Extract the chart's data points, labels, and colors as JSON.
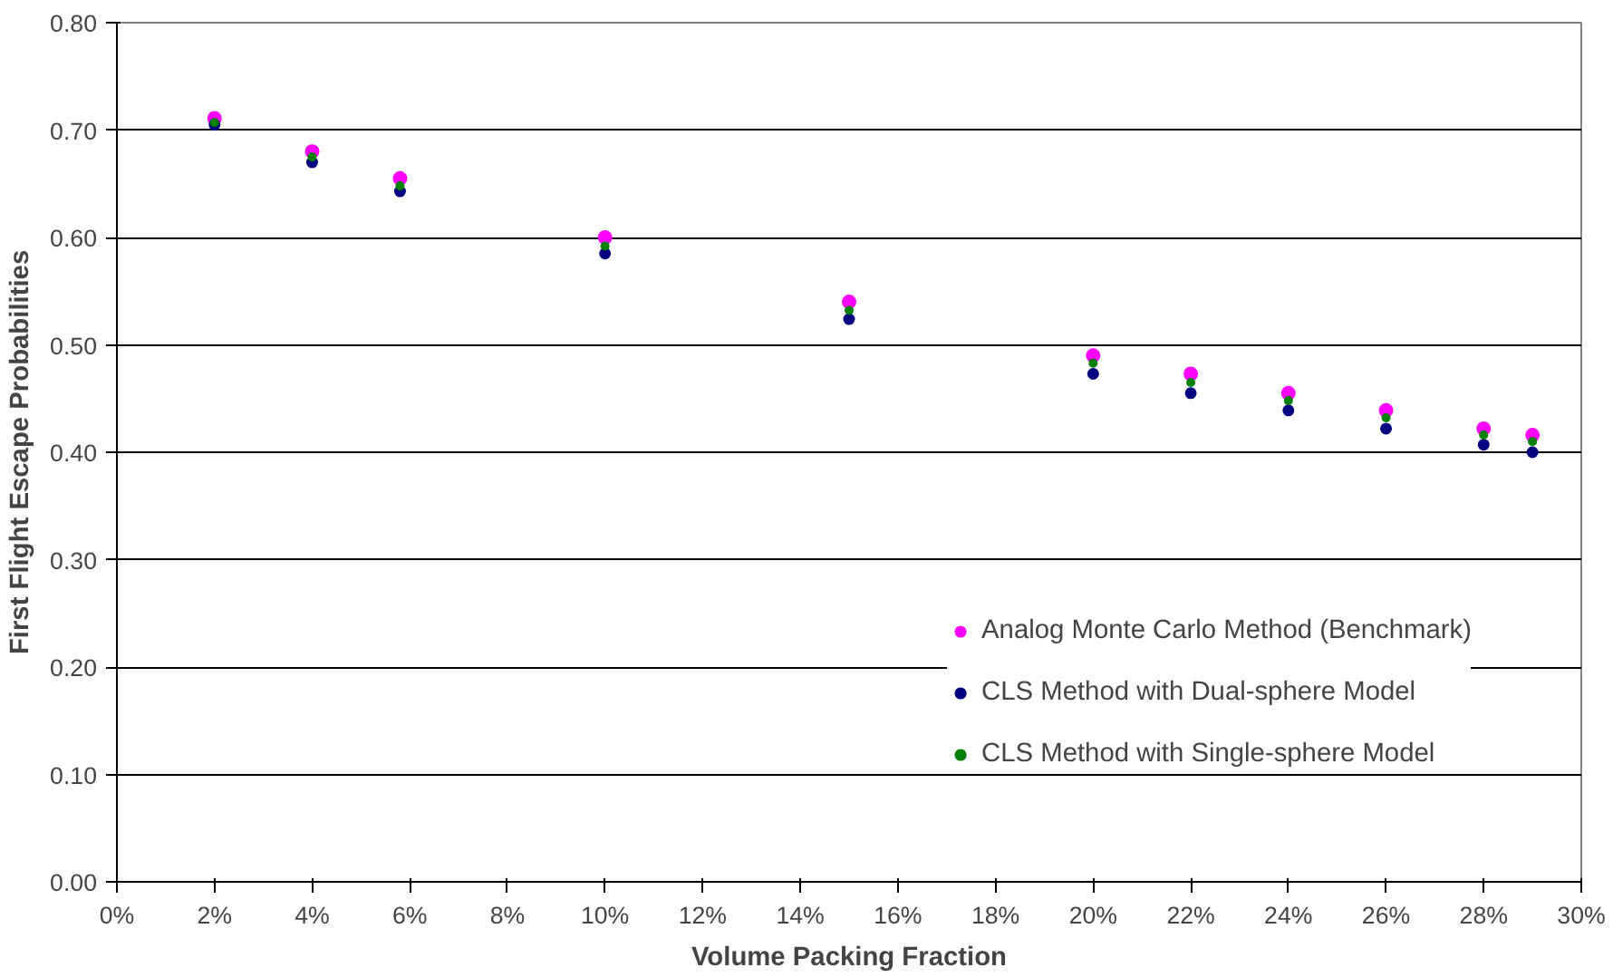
{
  "chart_data": {
    "type": "scatter",
    "xlabel": "Volume Packing Fraction",
    "ylabel": "First Flight Escape Probabilities",
    "x": [
      2,
      4,
      5.8,
      10,
      15,
      20,
      22,
      24,
      26,
      28,
      29
    ],
    "series": [
      {
        "name": "Analog Monte Carlo Method (Benchmark)",
        "color": "#ff00ff",
        "values": [
          0.711,
          0.68,
          0.655,
          0.6,
          0.54,
          0.49,
          0.473,
          0.455,
          0.439,
          0.422,
          0.416
        ]
      },
      {
        "name": "CLS Method with Dual-sphere Model",
        "color": "#000080",
        "values": [
          0.705,
          0.67,
          0.643,
          0.585,
          0.524,
          0.473,
          0.455,
          0.439,
          0.422,
          0.407,
          0.4
        ]
      },
      {
        "name": "CLS Method with Single-sphere Model",
        "color": "#008000",
        "values": [
          0.707,
          0.675,
          0.648,
          0.592,
          0.532,
          0.483,
          0.465,
          0.448,
          0.432,
          0.416,
          0.41
        ]
      }
    ],
    "xlim": [
      0,
      30
    ],
    "ylim": [
      0,
      0.8
    ],
    "xticks": [
      {
        "value": 0,
        "label": "0%"
      },
      {
        "value": 2,
        "label": "2%"
      },
      {
        "value": 4,
        "label": "4%"
      },
      {
        "value": 6,
        "label": "6%"
      },
      {
        "value": 8,
        "label": "8%"
      },
      {
        "value": 10,
        "label": "10%"
      },
      {
        "value": 12,
        "label": "12%"
      },
      {
        "value": 14,
        "label": "14%"
      },
      {
        "value": 16,
        "label": "16%"
      },
      {
        "value": 18,
        "label": "18%"
      },
      {
        "value": 20,
        "label": "20%"
      },
      {
        "value": 22,
        "label": "22%"
      },
      {
        "value": 24,
        "label": "24%"
      },
      {
        "value": 26,
        "label": "26%"
      },
      {
        "value": 28,
        "label": "28%"
      },
      {
        "value": 30,
        "label": "30%"
      }
    ],
    "yticks": [
      {
        "value": 0,
        "label": "0.00"
      },
      {
        "value": 0.1,
        "label": "0.10"
      },
      {
        "value": 0.2,
        "label": "0.20"
      },
      {
        "value": 0.3,
        "label": "0.30"
      },
      {
        "value": 0.4,
        "label": "0.40"
      },
      {
        "value": 0.5,
        "label": "0.50"
      },
      {
        "value": 0.6,
        "label": "0.60"
      },
      {
        "value": 0.7,
        "label": "0.70"
      },
      {
        "value": 0.8,
        "label": "0.80"
      }
    ],
    "grid": "y",
    "legend": "bottom right",
    "marker": "circle"
  }
}
